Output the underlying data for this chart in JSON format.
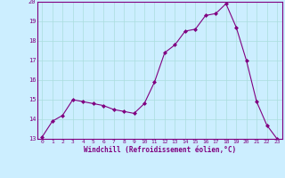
{
  "x": [
    0,
    1,
    2,
    3,
    4,
    5,
    6,
    7,
    8,
    9,
    10,
    11,
    12,
    13,
    14,
    15,
    16,
    17,
    18,
    19,
    20,
    21,
    22,
    23
  ],
  "y": [
    13.1,
    13.9,
    14.2,
    15.0,
    14.9,
    14.8,
    14.7,
    14.5,
    14.4,
    14.3,
    14.8,
    15.9,
    17.4,
    17.8,
    18.5,
    18.6,
    19.3,
    19.4,
    19.9,
    18.7,
    17.0,
    14.9,
    13.7,
    13.0
  ],
  "line_color": "#800080",
  "marker": "D",
  "marker_size": 2.0,
  "bg_color": "#cceeff",
  "grid_color": "#aadddd",
  "xlabel": "Windchill (Refroidissement éolien,°C)",
  "xlabel_color": "#800080",
  "tick_color": "#800080",
  "spine_color": "#800080",
  "ylim": [
    13,
    20
  ],
  "xlim": [
    -0.5,
    23.5
  ],
  "yticks": [
    13,
    14,
    15,
    16,
    17,
    18,
    19,
    20
  ],
  "xticks": [
    0,
    1,
    2,
    3,
    4,
    5,
    6,
    7,
    8,
    9,
    10,
    11,
    12,
    13,
    14,
    15,
    16,
    17,
    18,
    19,
    20,
    21,
    22,
    23
  ]
}
